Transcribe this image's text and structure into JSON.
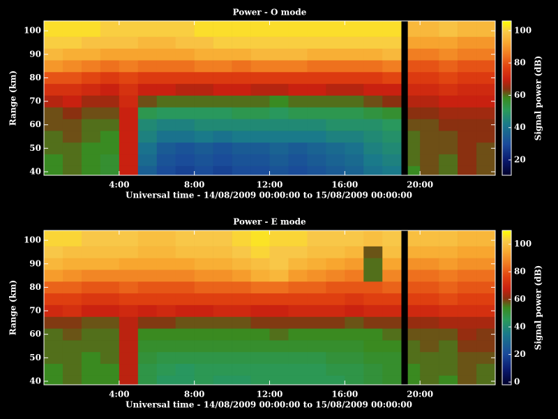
{
  "chart_data": [
    {
      "type": "heatmap",
      "title": "Power - O mode",
      "x_label": "Universal time - 14/08/2009 00:00:00 to 15/08/2009 00:00:00",
      "y_label": "Range (km)",
      "colorbar_label": "Signal power (dB)",
      "x_edges": [
        0,
        1,
        2,
        3,
        4,
        5,
        6,
        7,
        8,
        9,
        10,
        11,
        12,
        13,
        14,
        15,
        16,
        17,
        18,
        19,
        19.35,
        20,
        21,
        22,
        23,
        24
      ],
      "y_edges": [
        38.5,
        42.5,
        47.5,
        52.5,
        57.5,
        62.5,
        67.5,
        72.5,
        77.5,
        82.5,
        87.5,
        92.5,
        97.5,
        104.2
      ],
      "z": [
        [
          58,
          60,
          58,
          56,
          70,
          35,
          30,
          28,
          30,
          28,
          30,
          30,
          32,
          30,
          32,
          34,
          36,
          40,
          42,
          null,
          58,
          62,
          60,
          64,
          62
        ],
        [
          58,
          60,
          58,
          56,
          70,
          38,
          32,
          30,
          32,
          30,
          32,
          32,
          34,
          32,
          34,
          36,
          38,
          42,
          44,
          null,
          60,
          62,
          60,
          64,
          62
        ],
        [
          60,
          60,
          58,
          58,
          70,
          40,
          34,
          32,
          34,
          32,
          34,
          34,
          36,
          34,
          36,
          38,
          40,
          44,
          46,
          null,
          60,
          62,
          62,
          64,
          62
        ],
        [
          60,
          62,
          60,
          58,
          70,
          44,
          40,
          40,
          42,
          40,
          42,
          42,
          42,
          42,
          42,
          44,
          44,
          46,
          48,
          null,
          60,
          62,
          62,
          64,
          64
        ],
        [
          62,
          62,
          60,
          60,
          70,
          46,
          44,
          44,
          46,
          46,
          46,
          46,
          46,
          46,
          46,
          48,
          48,
          48,
          50,
          null,
          62,
          62,
          64,
          64,
          64
        ],
        [
          62,
          64,
          62,
          62,
          70,
          52,
          50,
          50,
          50,
          50,
          52,
          52,
          50,
          52,
          52,
          52,
          52,
          54,
          56,
          null,
          64,
          64,
          66,
          66,
          66
        ],
        [
          68,
          70,
          66,
          66,
          72,
          62,
          60,
          60,
          60,
          60,
          60,
          60,
          58,
          60,
          60,
          60,
          60,
          62,
          64,
          null,
          68,
          68,
          70,
          70,
          70
        ],
        [
          74,
          74,
          72,
          70,
          74,
          70,
          70,
          68,
          68,
          70,
          70,
          68,
          68,
          70,
          70,
          68,
          68,
          70,
          70,
          null,
          72,
          72,
          74,
          72,
          72
        ],
        [
          80,
          80,
          78,
          76,
          78,
          76,
          76,
          76,
          76,
          76,
          76,
          76,
          76,
          76,
          76,
          76,
          76,
          76,
          78,
          null,
          76,
          76,
          78,
          76,
          76
        ],
        [
          90,
          88,
          86,
          84,
          86,
          84,
          84,
          84,
          86,
          86,
          84,
          86,
          86,
          86,
          84,
          84,
          84,
          84,
          86,
          null,
          80,
          80,
          82,
          80,
          80
        ],
        [
          96,
          94,
          94,
          92,
          92,
          92,
          92,
          92,
          94,
          94,
          94,
          96,
          96,
          96,
          94,
          94,
          94,
          94,
          96,
          null,
          86,
          86,
          88,
          86,
          86
        ],
        [
          100,
          100,
          98,
          98,
          98,
          96,
          96,
          98,
          98,
          100,
          100,
          100,
          100,
          100,
          100,
          100,
          100,
          100,
          100,
          null,
          92,
          92,
          92,
          90,
          90
        ],
        [
          102,
          102,
          102,
          100,
          100,
          100,
          100,
          100,
          102,
          102,
          102,
          102,
          102,
          102,
          102,
          102,
          102,
          102,
          102,
          null,
          96,
          96,
          98,
          96,
          96
        ]
      ],
      "xlim": [
        0,
        24
      ],
      "ylim": [
        38.5,
        104.2
      ],
      "xticks": [
        {
          "value": 4,
          "label": "4:00"
        },
        {
          "value": 8,
          "label": "8:00"
        },
        {
          "value": 12,
          "label": "12:00"
        },
        {
          "value": 16,
          "label": "16:00"
        },
        {
          "value": 20,
          "label": "20:00"
        }
      ],
      "yticks": [
        40,
        50,
        60,
        70,
        80,
        90,
        100
      ],
      "clim": [
        10.5,
        106
      ],
      "cticks": [
        20,
        40,
        60,
        80,
        100
      ],
      "colormap": [
        "#00002a",
        "#0a1a6e",
        "#1a4a9a",
        "#1a7a8a",
        "#2a9a5a",
        "#3a8a20",
        "#8a3010",
        "#c82010",
        "#e04010",
        "#f07820",
        "#f8a830",
        "#f8c848",
        "#ffff00"
      ],
      "colormap_stops": [
        0,
        0.1,
        0.2,
        0.33,
        0.42,
        0.5,
        0.56,
        0.62,
        0.7,
        0.78,
        0.86,
        0.93,
        1
      ]
    },
    {
      "type": "heatmap",
      "title": "Power - E mode",
      "x_label": "Universal time - 14/08/2009 00:00:00 to 15/08/2009 00:00:00",
      "y_label": "Range (km)",
      "colorbar_label": "Signal power (dB)",
      "x_edges": [
        0,
        1,
        2,
        3,
        4,
        5,
        6,
        7,
        8,
        9,
        10,
        11,
        12,
        13,
        14,
        15,
        16,
        17,
        18,
        19,
        19.35,
        20,
        21,
        22,
        23,
        24
      ],
      "y_edges": [
        38.5,
        42.5,
        47.5,
        52.5,
        57.5,
        62.5,
        67.5,
        72.5,
        77.5,
        82.5,
        87.5,
        92.5,
        97.5,
        104.2
      ],
      "z": [
        [
          54,
          56,
          54,
          54,
          66,
          48,
          44,
          44,
          46,
          44,
          44,
          46,
          46,
          46,
          46,
          46,
          48,
          50,
          52,
          null,
          54,
          56,
          54,
          58,
          56
        ],
        [
          54,
          56,
          54,
          54,
          66,
          48,
          46,
          44,
          46,
          46,
          46,
          46,
          46,
          46,
          46,
          48,
          48,
          50,
          52,
          null,
          54,
          56,
          56,
          58,
          56
        ],
        [
          56,
          56,
          54,
          56,
          66,
          50,
          48,
          48,
          48,
          48,
          48,
          48,
          48,
          48,
          48,
          50,
          50,
          52,
          52,
          null,
          56,
          56,
          56,
          58,
          58
        ],
        [
          56,
          56,
          56,
          56,
          66,
          52,
          52,
          52,
          52,
          52,
          52,
          52,
          52,
          52,
          52,
          52,
          52,
          54,
          54,
          null,
          56,
          58,
          56,
          60,
          60
        ],
        [
          56,
          58,
          56,
          56,
          66,
          54,
          54,
          54,
          54,
          54,
          54,
          54,
          56,
          54,
          54,
          54,
          54,
          54,
          56,
          null,
          58,
          58,
          58,
          62,
          60
        ],
        [
          60,
          60,
          58,
          58,
          66,
          60,
          60,
          58,
          58,
          58,
          58,
          60,
          60,
          60,
          60,
          60,
          58,
          60,
          60,
          null,
          62,
          62,
          64,
          64,
          64
        ],
        [
          70,
          72,
          68,
          68,
          70,
          68,
          70,
          68,
          68,
          70,
          70,
          68,
          68,
          70,
          70,
          70,
          68,
          70,
          70,
          null,
          70,
          70,
          72,
          72,
          72
        ],
        [
          76,
          76,
          74,
          74,
          76,
          76,
          76,
          76,
          76,
          76,
          76,
          76,
          76,
          76,
          76,
          76,
          74,
          76,
          76,
          null,
          76,
          76,
          78,
          76,
          76
        ],
        [
          82,
          82,
          80,
          80,
          82,
          80,
          80,
          80,
          82,
          82,
          82,
          84,
          84,
          82,
          82,
          80,
          80,
          80,
          82,
          null,
          80,
          80,
          82,
          80,
          80
        ],
        [
          92,
          90,
          88,
          88,
          88,
          88,
          88,
          88,
          90,
          90,
          92,
          96,
          98,
          92,
          90,
          88,
          86,
          56,
          88,
          null,
          84,
          84,
          86,
          84,
          84
        ],
        [
          98,
          96,
          96,
          96,
          94,
          94,
          94,
          94,
          96,
          96,
          98,
          100,
          102,
          98,
          96,
          94,
          92,
          56,
          94,
          null,
          90,
          90,
          92,
          90,
          90
        ],
        [
          102,
          100,
          100,
          100,
          100,
          98,
          98,
          100,
          100,
          100,
          102,
          104,
          102,
          102,
          100,
          100,
          98,
          58,
          100,
          null,
          96,
          96,
          96,
          94,
          94
        ],
        [
          104,
          104,
          102,
          102,
          102,
          100,
          100,
          102,
          102,
          102,
          104,
          106,
          104,
          104,
          102,
          102,
          102,
          100,
          102,
          null,
          100,
          100,
          100,
          98,
          98
        ]
      ],
      "xlim": [
        0,
        24
      ],
      "ylim": [
        38.5,
        104.2
      ],
      "xticks": [
        {
          "value": 4,
          "label": "4:00"
        },
        {
          "value": 8,
          "label": "8:00"
        },
        {
          "value": 12,
          "label": "12:00"
        },
        {
          "value": 16,
          "label": "16:00"
        },
        {
          "value": 20,
          "label": "20:00"
        }
      ],
      "yticks": [
        40,
        50,
        60,
        70,
        80,
        90,
        100
      ],
      "clim": [
        -2,
        110
      ],
      "cticks": [
        0,
        20,
        40,
        60,
        80,
        100
      ],
      "colormap": [
        "#00002a",
        "#0a1a6e",
        "#1a4a9a",
        "#1a7a8a",
        "#2a9a5a",
        "#3a8a20",
        "#8a3010",
        "#c82010",
        "#e04010",
        "#f07820",
        "#f8a830",
        "#f8c848",
        "#ffff00"
      ],
      "colormap_stops": [
        0,
        0.1,
        0.2,
        0.33,
        0.42,
        0.5,
        0.56,
        0.62,
        0.7,
        0.78,
        0.86,
        0.93,
        1
      ]
    }
  ]
}
